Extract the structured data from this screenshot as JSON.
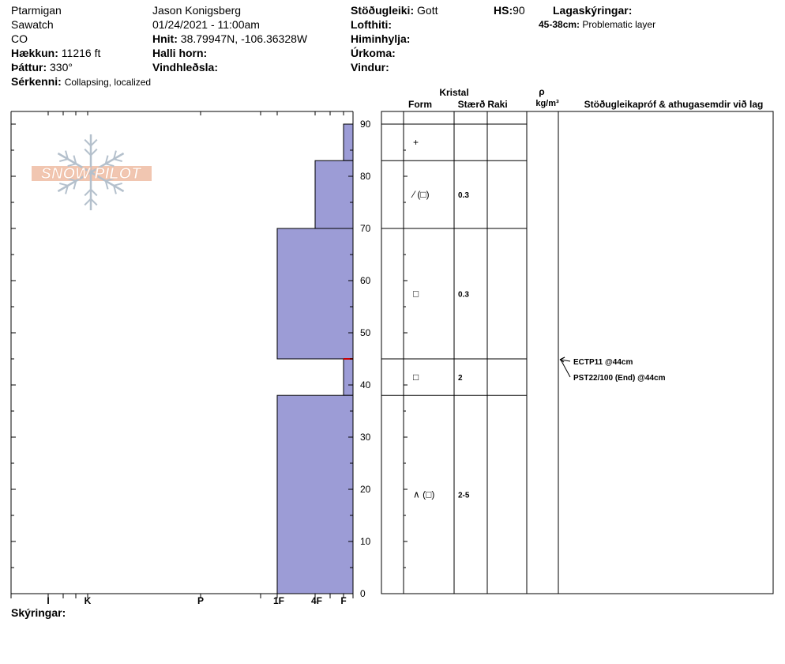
{
  "header": {
    "location": "Ptarmigan",
    "range": "Sawatch",
    "state": "CO",
    "elevation_label": "Hækkun:",
    "elevation_value": "11216 ft",
    "aspect_label": "Þáttur:",
    "aspect_value": "330°",
    "features_label": "Sérkenni:",
    "features_value": "Collapsing, localized",
    "observer": "Jason Konigsberg",
    "datetime": "01/24/2021 - 11:00am",
    "coords_label": "Hnit:",
    "coords_value": "38.79947N, -106.36328W",
    "slope_label": "Halli horn:",
    "wind_loading_label": "Vindhleðsla:",
    "stability_label": "Stöðugleiki:",
    "stability_value": "Gott",
    "air_temp_label": "Lofthiti:",
    "sky_label": "Himinhylja:",
    "precip_label": "Úrkoma:",
    "wind_label": "Vindur:",
    "hs_label": "HS:",
    "hs_value": "90",
    "layer_notes_label": "Lagaskýringar:",
    "layer_note_range": "45-38cm:",
    "layer_note_text": "Problematic layer",
    "notes_label": "Skýringar:"
  },
  "logo": {
    "text": "SNOW PILOT"
  },
  "columns": {
    "crystal": "Kristal",
    "form": "Form",
    "size": "Stærð",
    "moisture": "Raki",
    "rho": "ρ",
    "density_unit": "kg/m³",
    "tests": "Stöðugleikapróf & athugasemdir við lag"
  },
  "chart_data": {
    "type": "bar",
    "hardness_axis": {
      "labels": [
        "I",
        "K",
        "P",
        "1F",
        "4F",
        "F"
      ],
      "scale": "log"
    },
    "height_axis": {
      "min": 0,
      "max": 90,
      "ticks": [
        0,
        10,
        20,
        30,
        40,
        50,
        60,
        70,
        80,
        90
      ],
      "unit": "cm"
    },
    "layers": [
      {
        "top": 90,
        "bottom": 83,
        "hardness": "F",
        "form": "+",
        "size": ""
      },
      {
        "top": 83,
        "bottom": 70,
        "hardness": "4F",
        "form": "⁄ (□)",
        "size": "0.3"
      },
      {
        "top": 70,
        "bottom": 45,
        "hardness": "1F",
        "form": "□",
        "size": "0.3"
      },
      {
        "top": 45,
        "bottom": 38,
        "hardness": "F",
        "form": "□",
        "size": "2"
      },
      {
        "top": 38,
        "bottom": 0,
        "hardness": "1F",
        "form": "∧ (□)",
        "size": "2-5"
      }
    ],
    "tests": [
      {
        "text": "ECTP11 @44cm",
        "depth": 44
      },
      {
        "text": "PST22/100 (End) @44cm",
        "depth": 44
      }
    ],
    "colors": {
      "layer_fill": "#9c9cd6",
      "layer_stroke": "#000000",
      "marker": "#cc0000",
      "logo": "#f0c0a8",
      "flake": "#b4c0cc"
    }
  }
}
